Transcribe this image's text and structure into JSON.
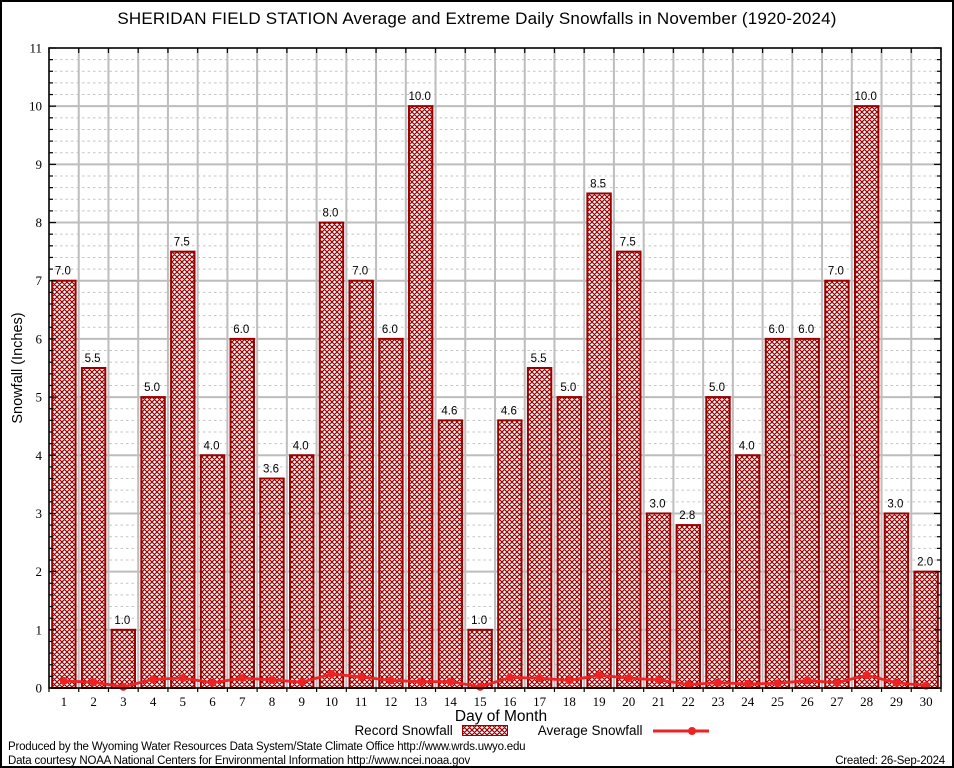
{
  "title": "SHERIDAN FIELD STATION Average and Extreme Daily Snowfalls in November (1920-2024)",
  "legend": {
    "record": "Record Snowfall",
    "average": "Average Snowfall"
  },
  "footer": {
    "line1": "Produced by the Wyoming Water Resources Data System/State Climate Office http://www.wrds.uwyo.edu",
    "line2": "Data courtesy NOAA National Centers for Environmental Information http://www.ncei.noaa.gov",
    "created": "Created: 26-Sep-2024"
  },
  "colors": {
    "bar": "#990000",
    "line": "#ee2222",
    "grid_major": "#bdbdbd",
    "grid_minor": "#c4c4c4",
    "axis": "#000000",
    "text": "#000000",
    "background": "#ffffff"
  },
  "chart_data": {
    "type": "bar",
    "title": "SHERIDAN FIELD STATION Average and Extreme Daily Snowfalls in November (1920-2024)",
    "xlabel": "Day of Month",
    "ylabel": "Snowfall (Inches)",
    "ylim": [
      0,
      11
    ],
    "y_major_tick_step": 1,
    "y_minor_tick_step": 0.2,
    "grid": true,
    "legend_position": "bottom",
    "categories": [
      1,
      2,
      3,
      4,
      5,
      6,
      7,
      8,
      9,
      10,
      11,
      12,
      13,
      14,
      15,
      16,
      17,
      18,
      19,
      20,
      21,
      22,
      23,
      24,
      25,
      26,
      27,
      28,
      29,
      30
    ],
    "series": [
      {
        "name": "Record Snowfall",
        "type": "bar",
        "data_labels": true,
        "values": [
          7.0,
          5.5,
          1.0,
          5.0,
          7.5,
          4.0,
          6.0,
          3.6,
          4.0,
          8.0,
          7.0,
          6.0,
          10.0,
          4.6,
          1.0,
          4.6,
          5.5,
          5.0,
          8.5,
          7.5,
          3.0,
          2.8,
          5.0,
          4.0,
          6.0,
          6.0,
          7.0,
          10.0,
          3.0,
          2.0
        ]
      },
      {
        "name": "Average Snowfall",
        "type": "line",
        "data_labels": false,
        "values": [
          0.12,
          0.1,
          0.02,
          0.15,
          0.17,
          0.09,
          0.17,
          0.14,
          0.1,
          0.24,
          0.19,
          0.13,
          0.11,
          0.11,
          0.02,
          0.18,
          0.17,
          0.13,
          0.22,
          0.17,
          0.14,
          0.06,
          0.09,
          0.07,
          0.08,
          0.13,
          0.09,
          0.22,
          0.09,
          0.04
        ]
      }
    ]
  }
}
